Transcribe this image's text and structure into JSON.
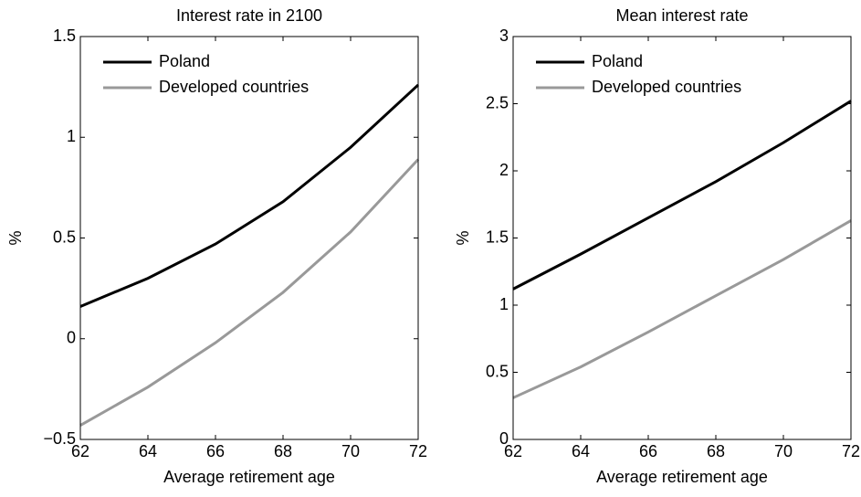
{
  "chart_data": [
    {
      "type": "line",
      "title": "Interest rate in 2100",
      "x_label": "Average retirement age",
      "y_label": "%",
      "x": [
        62,
        64,
        66,
        68,
        70,
        72
      ],
      "xlim": [
        62,
        72
      ],
      "xticks": [
        62,
        64,
        66,
        68,
        70,
        72
      ],
      "ylim": [
        -0.5,
        1.5
      ],
      "yticks": [
        {
          "value": -0.5,
          "label": "−0.5"
        },
        0,
        0.5,
        1,
        1.5
      ],
      "legend": "upper left",
      "series": [
        {
          "name": "Poland",
          "color": "#000000",
          "values": [
            0.16,
            0.3,
            0.47,
            0.68,
            0.95,
            1.26
          ]
        },
        {
          "name": "Developed countries",
          "color": "#999999",
          "values": [
            -0.43,
            -0.24,
            -0.02,
            0.23,
            0.53,
            0.89
          ]
        }
      ]
    },
    {
      "type": "line",
      "title": "Mean interest rate",
      "x_label": "Average retirement age",
      "y_label": "%",
      "x": [
        62,
        64,
        66,
        68,
        70,
        72
      ],
      "xlim": [
        62,
        72
      ],
      "xticks": [
        62,
        64,
        66,
        68,
        70,
        72
      ],
      "ylim": [
        0,
        3
      ],
      "yticks": [
        0,
        0.5,
        1,
        1.5,
        2,
        2.5,
        3
      ],
      "legend": "upper left",
      "series": [
        {
          "name": "Poland",
          "color": "#000000",
          "values": [
            1.12,
            1.38,
            1.65,
            1.92,
            2.21,
            2.52
          ]
        },
        {
          "name": "Developed countries",
          "color": "#999999",
          "values": [
            0.31,
            0.54,
            0.8,
            1.07,
            1.34,
            1.63
          ]
        }
      ]
    }
  ]
}
